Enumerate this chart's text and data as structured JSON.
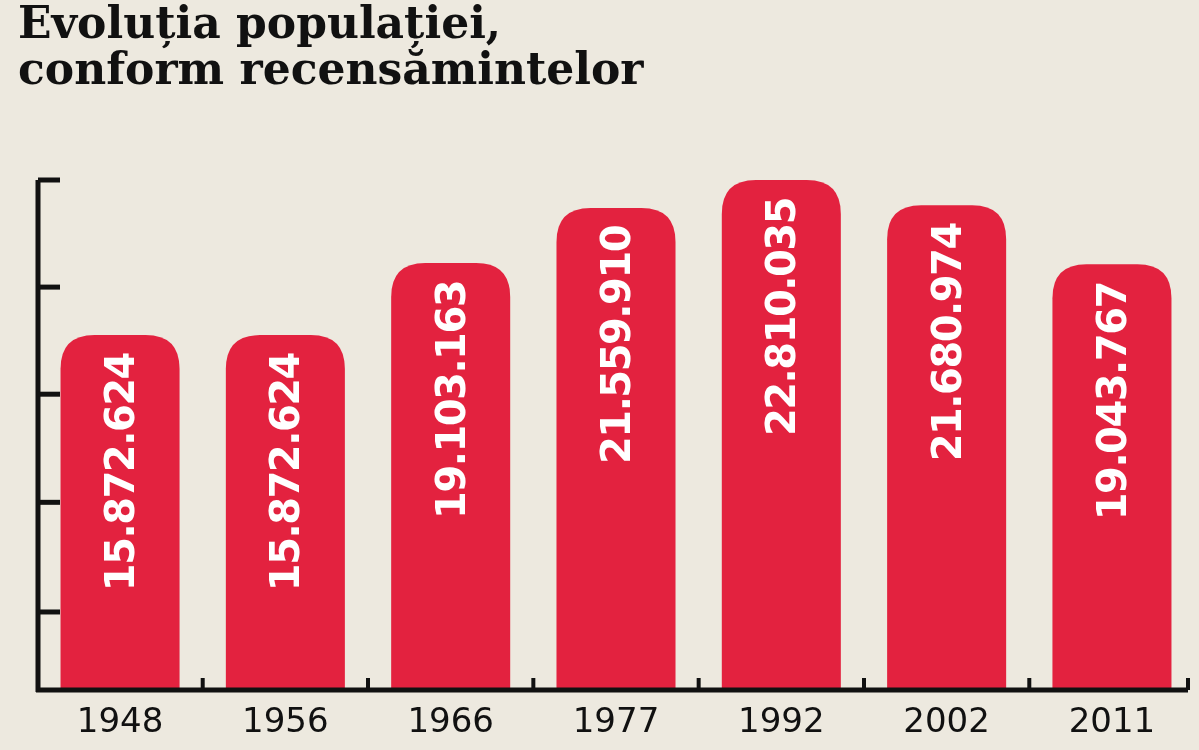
{
  "chart_data": {
    "type": "bar",
    "title": "Evoluția populației,\nconform recensămintelor",
    "categories": [
      "1948",
      "1956",
      "1966",
      "1977",
      "1992",
      "2002",
      "2011"
    ],
    "values": [
      15872624,
      15872624,
      19103163,
      21559910,
      22810035,
      21680974,
      19043767
    ],
    "value_labels": [
      "15.872.624",
      "15.872.624",
      "19.103.163",
      "21.559.910",
      "22.810.035",
      "21.680.974",
      "19.043.767"
    ],
    "color": "#e3223f"
  }
}
